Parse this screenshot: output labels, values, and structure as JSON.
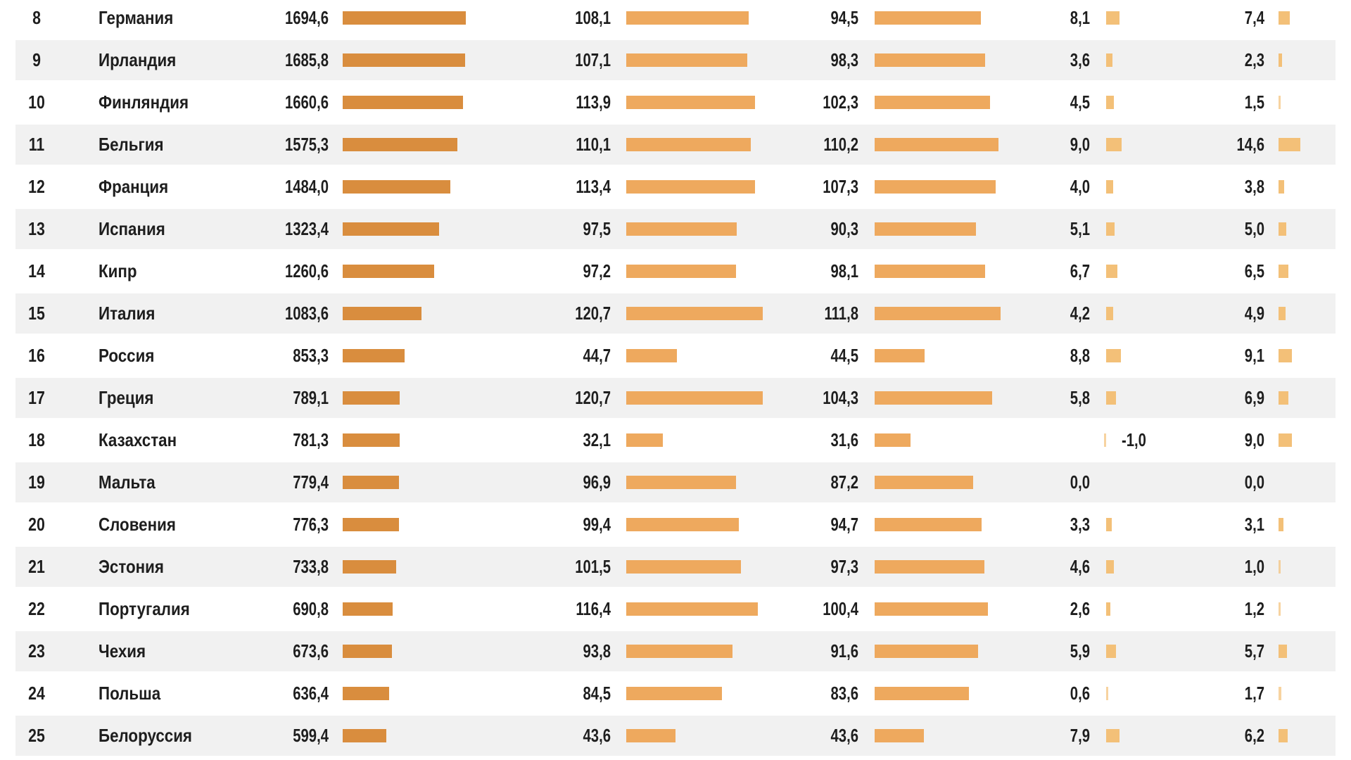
{
  "colors": {
    "bar_main": "#d98d3e",
    "bar_secondary": "#eea95e",
    "bar_small": "#f3c078",
    "row_shade": "#f1f1f1"
  },
  "chart_data": {
    "type": "table",
    "rows": [
      {
        "rank": "8",
        "country": "Германия",
        "c1": 1694.6,
        "c1_label": "1694,6",
        "c2": 108.1,
        "c2_label": "108,1",
        "c3": 94.5,
        "c3_label": "94,5",
        "c4": 8.1,
        "c4_label": "8,1",
        "c5": 7.4,
        "c5_label": "7,4"
      },
      {
        "rank": "9",
        "country": "Ирландия",
        "c1": 1685.8,
        "c1_label": "1685,8",
        "c2": 107.1,
        "c2_label": "107,1",
        "c3": 98.3,
        "c3_label": "98,3",
        "c4": 3.6,
        "c4_label": "3,6",
        "c5": 2.3,
        "c5_label": "2,3"
      },
      {
        "rank": "10",
        "country": "Финляндия",
        "c1": 1660.6,
        "c1_label": "1660,6",
        "c2": 113.9,
        "c2_label": "113,9",
        "c3": 102.3,
        "c3_label": "102,3",
        "c4": 4.5,
        "c4_label": "4,5",
        "c5": 1.5,
        "c5_label": "1,5"
      },
      {
        "rank": "11",
        "country": "Бельгия",
        "c1": 1575.3,
        "c1_label": "1575,3",
        "c2": 110.1,
        "c2_label": "110,1",
        "c3": 110.2,
        "c3_label": "110,2",
        "c4": 9.0,
        "c4_label": "9,0",
        "c5": 14.6,
        "c5_label": "14,6"
      },
      {
        "rank": "12",
        "country": "Франция",
        "c1": 1484.0,
        "c1_label": "1484,0",
        "c2": 113.4,
        "c2_label": "113,4",
        "c3": 107.3,
        "c3_label": "107,3",
        "c4": 4.0,
        "c4_label": "4,0",
        "c5": 3.8,
        "c5_label": "3,8"
      },
      {
        "rank": "13",
        "country": "Испания",
        "c1": 1323.4,
        "c1_label": "1323,4",
        "c2": 97.5,
        "c2_label": "97,5",
        "c3": 90.3,
        "c3_label": "90,3",
        "c4": 5.1,
        "c4_label": "5,1",
        "c5": 5.0,
        "c5_label": "5,0"
      },
      {
        "rank": "14",
        "country": "Кипр",
        "c1": 1260.6,
        "c1_label": "1260,6",
        "c2": 97.2,
        "c2_label": "97,2",
        "c3": 98.1,
        "c3_label": "98,1",
        "c4": 6.7,
        "c4_label": "6,7",
        "c5": 6.5,
        "c5_label": "6,5"
      },
      {
        "rank": "15",
        "country": "Италия",
        "c1": 1083.6,
        "c1_label": "1083,6",
        "c2": 120.7,
        "c2_label": "120,7",
        "c3": 111.8,
        "c3_label": "111,8",
        "c4": 4.2,
        "c4_label": "4,2",
        "c5": 4.9,
        "c5_label": "4,9"
      },
      {
        "rank": "16",
        "country": "Россия",
        "c1": 853.3,
        "c1_label": "853,3",
        "c2": 44.7,
        "c2_label": "44,7",
        "c3": 44.5,
        "c3_label": "44,5",
        "c4": 8.8,
        "c4_label": "8,8",
        "c5": 9.1,
        "c5_label": "9,1"
      },
      {
        "rank": "17",
        "country": "Греция",
        "c1": 789.1,
        "c1_label": "789,1",
        "c2": 120.7,
        "c2_label": "120,7",
        "c3": 104.3,
        "c3_label": "104,3",
        "c4": 5.8,
        "c4_label": "5,8",
        "c5": 6.9,
        "c5_label": "6,9"
      },
      {
        "rank": "18",
        "country": "Казахстан",
        "c1": 781.3,
        "c1_label": "781,3",
        "c2": 32.1,
        "c2_label": "32,1",
        "c3": 31.6,
        "c3_label": "31,6",
        "c4": -1.0,
        "c4_label": "-1,0",
        "c5": 9.0,
        "c5_label": "9,0"
      },
      {
        "rank": "19",
        "country": "Мальта",
        "c1": 779.4,
        "c1_label": "779,4",
        "c2": 96.9,
        "c2_label": "96,9",
        "c3": 87.2,
        "c3_label": "87,2",
        "c4": 0.0,
        "c4_label": "0,0",
        "c5": 0.0,
        "c5_label": "0,0"
      },
      {
        "rank": "20",
        "country": "Словения",
        "c1": 776.3,
        "c1_label": "776,3",
        "c2": 99.4,
        "c2_label": "99,4",
        "c3": 94.7,
        "c3_label": "94,7",
        "c4": 3.3,
        "c4_label": "3,3",
        "c5": 3.1,
        "c5_label": "3,1"
      },
      {
        "rank": "21",
        "country": "Эстония",
        "c1": 733.8,
        "c1_label": "733,8",
        "c2": 101.5,
        "c2_label": "101,5",
        "c3": 97.3,
        "c3_label": "97,3",
        "c4": 4.6,
        "c4_label": "4,6",
        "c5": 1.0,
        "c5_label": "1,0"
      },
      {
        "rank": "22",
        "country": "Португалия",
        "c1": 690.8,
        "c1_label": "690,8",
        "c2": 116.4,
        "c2_label": "116,4",
        "c3": 100.4,
        "c3_label": "100,4",
        "c4": 2.6,
        "c4_label": "2,6",
        "c5": 1.2,
        "c5_label": "1,2"
      },
      {
        "rank": "23",
        "country": "Чехия",
        "c1": 673.6,
        "c1_label": "673,6",
        "c2": 93.8,
        "c2_label": "93,8",
        "c3": 91.6,
        "c3_label": "91,6",
        "c4": 5.9,
        "c4_label": "5,9",
        "c5": 5.7,
        "c5_label": "5,7"
      },
      {
        "rank": "24",
        "country": "Польша",
        "c1": 636.4,
        "c1_label": "636,4",
        "c2": 84.5,
        "c2_label": "84,5",
        "c3": 83.6,
        "c3_label": "83,6",
        "c4": 0.6,
        "c4_label": "0,6",
        "c5": 1.7,
        "c5_label": "1,7"
      },
      {
        "rank": "25",
        "country": "Белоруссия",
        "c1": 599.4,
        "c1_label": "599,4",
        "c2": 43.6,
        "c2_label": "43,6",
        "c3": 43.6,
        "c3_label": "43,6",
        "c4": 7.9,
        "c4_label": "7,9",
        "c5": 6.2,
        "c5_label": "6,2"
      }
    ]
  }
}
